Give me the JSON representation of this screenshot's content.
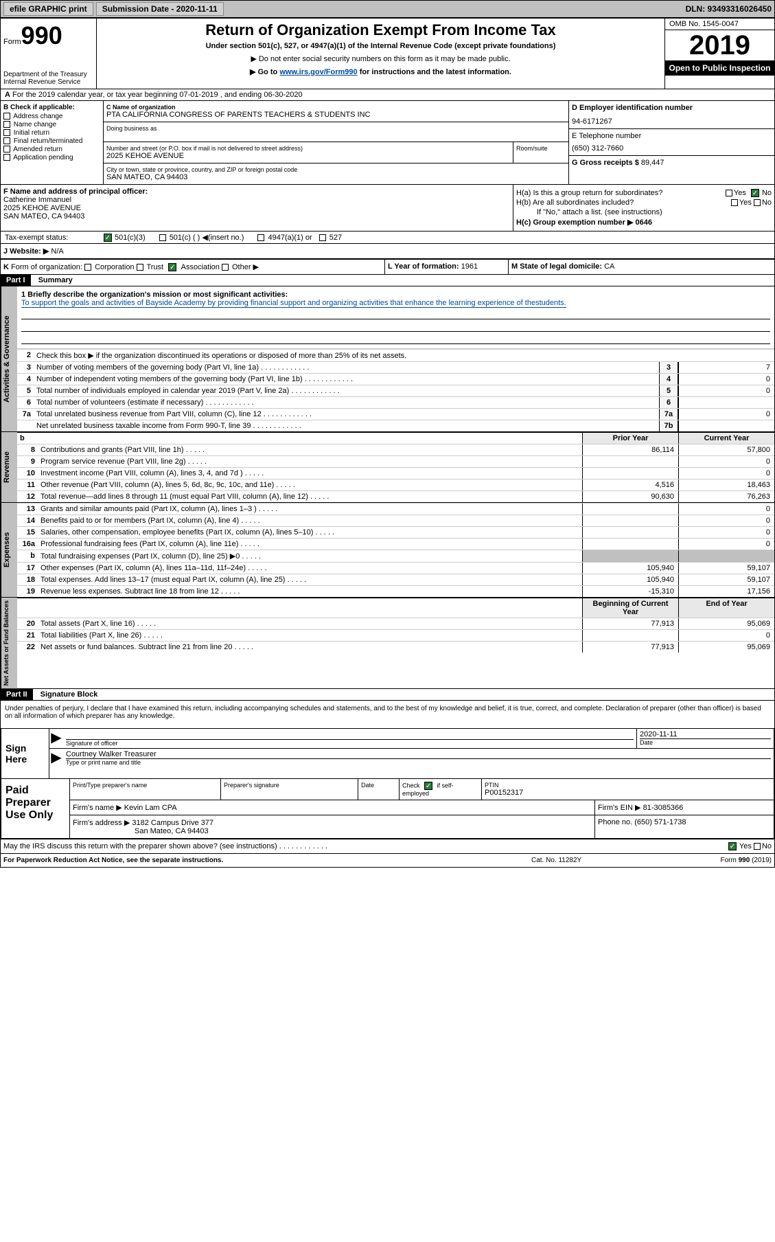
{
  "topbar": {
    "efile": "efile GRAPHIC print",
    "submission_label": "Submission Date - 2020-11-11",
    "dln": "DLN: 93493316026450"
  },
  "header": {
    "form_prefix": "Form",
    "form_number": "990",
    "dept": "Department of the Treasury\nInternal Revenue Service",
    "title": "Return of Organization Exempt From Income Tax",
    "subtitle": "Under section 501(c), 527, or 4947(a)(1) of the Internal Revenue Code (except private foundations)",
    "note1": "Do not enter social security numbers on this form as it may be made public.",
    "note2_pre": "Go to ",
    "note2_link": "www.irs.gov/Form990",
    "note2_post": " for instructions and the latest information.",
    "omb": "OMB No. 1545-0047",
    "year": "2019",
    "inspection": "Open to Public Inspection"
  },
  "row_a": "For the 2019 calendar year, or tax year beginning 07-01-2019   , and ending 06-30-2020",
  "section_b": {
    "title": "B Check if applicable:",
    "items": [
      "Address change",
      "Name change",
      "Initial return",
      "Final return/terminated",
      "Amended return",
      "Application pending"
    ]
  },
  "section_c": {
    "name_label": "C Name of organization",
    "name": "PTA CALIFORNIA CONGRESS OF PARENTS TEACHERS & STUDENTS INC",
    "dba_label": "Doing business as",
    "addr_label": "Number and street (or P.O. box if mail is not delivered to street address)",
    "addr": "2025 KEHOE AVENUE",
    "room_label": "Room/suite",
    "city_label": "City or town, state or province, country, and ZIP or foreign postal code",
    "city": "SAN MATEO, CA  94403"
  },
  "section_d": {
    "ein_label": "D Employer identification number",
    "ein": "94-6171267",
    "tel_label": "E Telephone number",
    "tel": "(650) 312-7660",
    "gross_label": "G Gross receipts $ ",
    "gross": "89,447"
  },
  "section_f": {
    "label": "F  Name and address of principal officer:",
    "name": "Catherine Immanuel",
    "addr1": "2025 KEHOE AVENUE",
    "addr2": "SAN MATEO, CA  94403"
  },
  "section_h": {
    "ha": "H(a)  Is this a group return for subordinates?",
    "hb": "H(b)  Are all subordinates included?",
    "hb_note": "If \"No,\" attach a list. (see instructions)",
    "hc": "H(c)  Group exemption number ▶   0646",
    "yes": "Yes",
    "no": "No"
  },
  "tax_status": {
    "label": "Tax-exempt status:",
    "opt1": "501(c)(3)",
    "opt2": "501(c) (  ) ◀(insert no.)",
    "opt3": "4947(a)(1) or",
    "opt4": "527"
  },
  "row_j": {
    "label": "J   Website: ▶",
    "val": "N/A"
  },
  "row_k": "K Form of organization:        Corporation        Trust        Association        Other ▶",
  "row_l": {
    "label": "L Year of formation:",
    "val": "1961"
  },
  "row_m": {
    "label": "M State of legal domicile:",
    "val": "CA"
  },
  "part1": {
    "header": "Part I",
    "title": "Summary",
    "side_labels": [
      "Activities & Governance",
      "Revenue",
      "Expenses",
      "Net Assets or Fund Balances"
    ],
    "line1_label": "1  Briefly describe the organization's mission or most significant activities:",
    "line1_text": "To support the goals and activities of Bayside Academy by providing financial support and organizing activities that enhance the learning experience of thestudents.",
    "line2": "Check this box ▶        if the organization discontinued its operations or disposed of more than 25% of its net assets.",
    "gov_lines": [
      {
        "n": "3",
        "t": "Number of voting members of the governing body (Part VI, line 1a)",
        "box": "3",
        "v": "7"
      },
      {
        "n": "4",
        "t": "Number of independent voting members of the governing body (Part VI, line 1b)",
        "box": "4",
        "v": "0"
      },
      {
        "n": "5",
        "t": "Total number of individuals employed in calendar year 2019 (Part V, line 2a)",
        "box": "5",
        "v": "0"
      },
      {
        "n": "6",
        "t": "Total number of volunteers (estimate if necessary)",
        "box": "6",
        "v": ""
      },
      {
        "n": "7a",
        "t": "Total unrelated business revenue from Part VIII, column (C), line 12",
        "box": "7a",
        "v": "0"
      },
      {
        "n": "",
        "t": "Net unrelated business taxable income from Form 990-T, line 39",
        "box": "7b",
        "v": ""
      }
    ],
    "col_prior": "Prior Year",
    "col_curr": "Current Year",
    "rev_lines": [
      {
        "n": "8",
        "t": "Contributions and grants (Part VIII, line 1h)",
        "p": "86,114",
        "c": "57,800"
      },
      {
        "n": "9",
        "t": "Program service revenue (Part VIII, line 2g)",
        "p": "",
        "c": "0"
      },
      {
        "n": "10",
        "t": "Investment income (Part VIII, column (A), lines 3, 4, and 7d )",
        "p": "",
        "c": "0"
      },
      {
        "n": "11",
        "t": "Other revenue (Part VIII, column (A), lines 5, 6d, 8c, 9c, 10c, and 11e)",
        "p": "4,516",
        "c": "18,463"
      },
      {
        "n": "12",
        "t": "Total revenue—add lines 8 through 11 (must equal Part VIII, column (A), line 12)",
        "p": "90,630",
        "c": "76,263"
      }
    ],
    "exp_lines": [
      {
        "n": "13",
        "t": "Grants and similar amounts paid (Part IX, column (A), lines 1–3 )",
        "p": "",
        "c": "0"
      },
      {
        "n": "14",
        "t": "Benefits paid to or for members (Part IX, column (A), line 4)",
        "p": "",
        "c": "0"
      },
      {
        "n": "15",
        "t": "Salaries, other compensation, employee benefits (Part IX, column (A), lines 5–10)",
        "p": "",
        "c": "0"
      },
      {
        "n": "16a",
        "t": "Professional fundraising fees (Part IX, column (A), line 11e)",
        "p": "",
        "c": "0"
      },
      {
        "n": "b",
        "t": "Total fundraising expenses (Part IX, column (D), line 25) ▶0",
        "p": "shaded",
        "c": "shaded"
      },
      {
        "n": "17",
        "t": "Other expenses (Part IX, column (A), lines 11a–11d, 11f–24e)",
        "p": "105,940",
        "c": "59,107"
      },
      {
        "n": "18",
        "t": "Total expenses. Add lines 13–17 (must equal Part IX, column (A), line 25)",
        "p": "105,940",
        "c": "59,107"
      },
      {
        "n": "19",
        "t": "Revenue less expenses. Subtract line 18 from line 12",
        "p": "-15,310",
        "c": "17,156"
      }
    ],
    "col_beg": "Beginning of Current Year",
    "col_end": "End of Year",
    "net_lines": [
      {
        "n": "20",
        "t": "Total assets (Part X, line 16)",
        "p": "77,913",
        "c": "95,069"
      },
      {
        "n": "21",
        "t": "Total liabilities (Part X, line 26)",
        "p": "",
        "c": "0"
      },
      {
        "n": "22",
        "t": "Net assets or fund balances. Subtract line 21 from line 20",
        "p": "77,913",
        "c": "95,069"
      }
    ]
  },
  "part2": {
    "header": "Part II",
    "title": "Signature Block",
    "declaration": "Under penalties of perjury, I declare that I have examined this return, including accompanying schedules and statements, and to the best of my knowledge and belief, it is true, correct, and complete. Declaration of preparer (other than officer) is based on all information of which preparer has any knowledge.",
    "sign_here": "Sign Here",
    "sig_officer": "Signature of officer",
    "sig_date": "2020-11-11",
    "date_label": "Date",
    "officer_name": "Courtney Walker Treasurer",
    "type_label": "Type or print name and title",
    "paid": "Paid Preparer Use Only",
    "prep_name_label": "Print/Type preparer's name",
    "prep_sig_label": "Preparer's signature",
    "check_if": "Check         if self-employed",
    "ptin_label": "PTIN",
    "ptin": "P00152317",
    "firm_name_label": "Firm's name    ▶",
    "firm_name": "Kevin Lam CPA",
    "firm_ein_label": "Firm's EIN ▶",
    "firm_ein": "81-3085366",
    "firm_addr_label": "Firm's address ▶",
    "firm_addr1": "3182 Campus Drive 377",
    "firm_addr2": "San Mateo, CA  94403",
    "phone_label": "Phone no.",
    "phone": "(650) 571-1738",
    "discuss": "May the IRS discuss this return with the preparer shown above? (see instructions)"
  },
  "footer": {
    "left": "For Paperwork Reduction Act Notice, see the separate instructions.",
    "mid": "Cat. No. 11282Y",
    "right": "Form 990 (2019)"
  },
  "colors": {
    "link": "#004b9b",
    "check_green": "#2a7a3a"
  }
}
